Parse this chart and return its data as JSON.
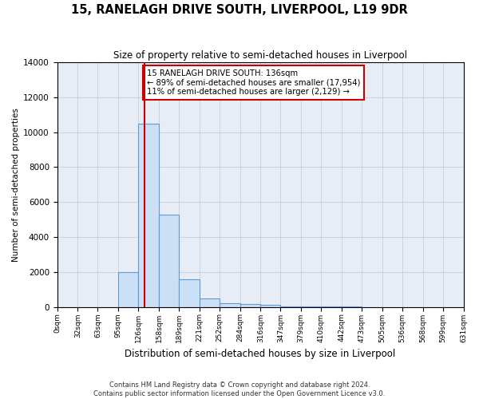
{
  "title": "15, RANELAGH DRIVE SOUTH, LIVERPOOL, L19 9DR",
  "subtitle": "Size of property relative to semi-detached houses in Liverpool",
  "xlabel": "Distribution of semi-detached houses by size in Liverpool",
  "ylabel": "Number of semi-detached properties",
  "footnote1": "Contains HM Land Registry data © Crown copyright and database right 2024.",
  "footnote2": "Contains public sector information licensed under the Open Government Licence v3.0.",
  "annotation_title": "15 RANELAGH DRIVE SOUTH: 136sqm",
  "annotation_line1": "← 89% of semi-detached houses are smaller (17,954)",
  "annotation_line2": "11% of semi-detached houses are larger (2,129) →",
  "property_size": 136,
  "bar_edge_color": "#5b9bd5",
  "bar_face_color": "#cce0f5",
  "vline_color": "#cc0000",
  "annotation_box_color": "#cc0000",
  "grid_color": "#c0c8d8",
  "background_color": "#e8edf5",
  "bin_edges": [
    0,
    32,
    63,
    95,
    126,
    158,
    189,
    221,
    252,
    284,
    316,
    347,
    379,
    410,
    442,
    473,
    505,
    536,
    568,
    599,
    631
  ],
  "bin_labels": [
    "0sqm",
    "32sqm",
    "63sqm",
    "95sqm",
    "126sqm",
    "158sqm",
    "189sqm",
    "221sqm",
    "252sqm",
    "284sqm",
    "316sqm",
    "347sqm",
    "379sqm",
    "410sqm",
    "442sqm",
    "473sqm",
    "505sqm",
    "536sqm",
    "568sqm",
    "599sqm",
    "631sqm"
  ],
  "counts": [
    0,
    0,
    0,
    2000,
    10500,
    5300,
    1600,
    500,
    200,
    150,
    100,
    50,
    50,
    20,
    10,
    5,
    2,
    1,
    0,
    0
  ],
  "ylim": [
    0,
    14000
  ],
  "yticks": [
    0,
    2000,
    4000,
    6000,
    8000,
    10000,
    12000,
    14000
  ]
}
